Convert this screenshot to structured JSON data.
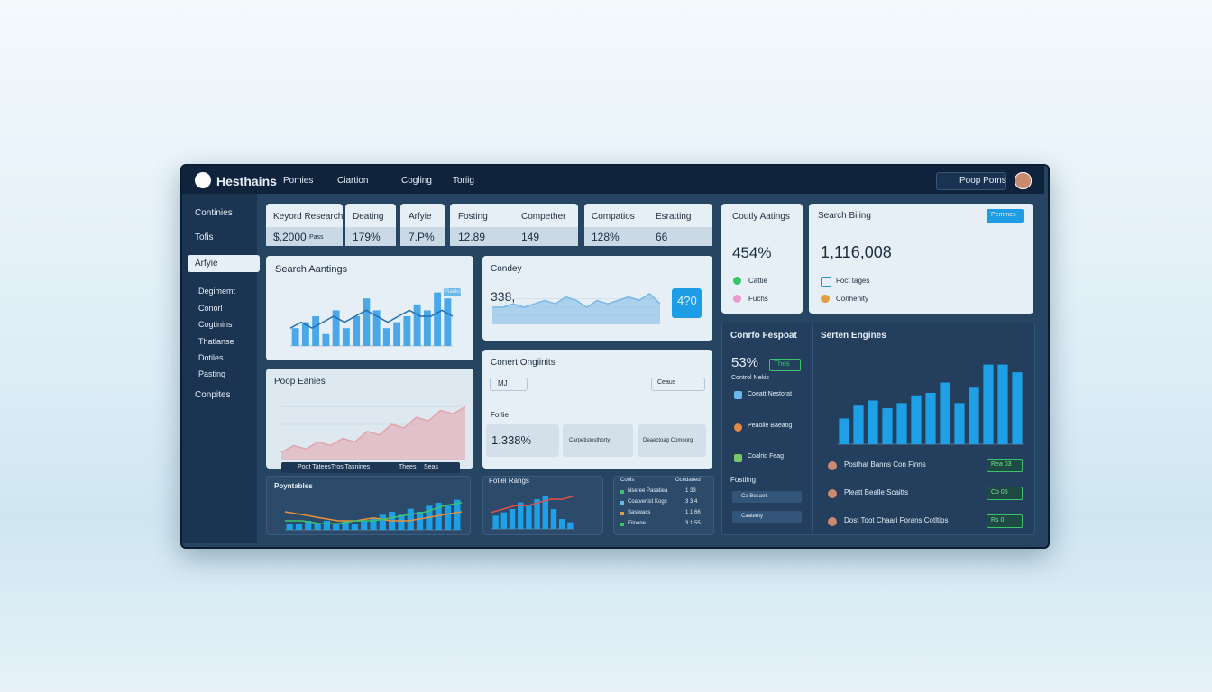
{
  "header": {
    "brand": "Hesthains",
    "nav": [
      "Pomies",
      "Ciartion",
      "Cogling",
      "Toriig"
    ],
    "search": "Poop Poms"
  },
  "sidebar": {
    "items": [
      "Continies",
      "Tofis",
      "Arfyie",
      "Degimemt",
      "Conorl",
      "Cogtinins",
      "Thatlanse",
      "Dotiles",
      "Pasting",
      "Conpites"
    ]
  },
  "kpis": [
    {
      "label": "Keyord Research",
      "value": "$,2000",
      "unit": "Pass"
    },
    {
      "label": "Deating",
      "value": "179%"
    },
    {
      "label": "Arfyie",
      "value": "7.P%"
    },
    {
      "label": "Fosting",
      "value": "12.89",
      "label2": "Compether",
      "value2": "149"
    },
    {
      "label": "Compatios",
      "value": "128%",
      "label2": "Esratting",
      "value2": "66"
    }
  ],
  "rankings": {
    "title": "Search Aantings",
    "badge": "Ranks",
    "ylim": [
      0,
      10
    ],
    "color": "#4aa8e8",
    "values": [
      3,
      4,
      5,
      2,
      6,
      3,
      5,
      8,
      6,
      3,
      4,
      5,
      7,
      6,
      9,
      8
    ],
    "line": {
      "color": "#1f6fb0",
      "values": [
        3,
        4,
        3,
        4,
        5,
        4,
        5,
        6,
        5,
        4,
        5,
        6,
        5,
        5,
        6,
        5
      ]
    }
  },
  "condey": {
    "title": "Condey",
    "value": "338,",
    "badge": "4?0",
    "ylim": [
      0,
      10
    ],
    "color": "#7ab8e6",
    "values": [
      5,
      5,
      6,
      5,
      6,
      7,
      6,
      8,
      7,
      5,
      7,
      6,
      7,
      8,
      7,
      9,
      6
    ]
  },
  "eanies": {
    "title": "Poop Eanies",
    "ylim": [
      0,
      10
    ],
    "color": "#e3a3ad",
    "values": [
      1,
      2,
      1.5,
      2.5,
      2,
      3,
      2.5,
      4,
      3.5,
      5,
      4.5,
      6,
      5.5,
      7,
      6.5,
      7.5
    ],
    "legend": [
      "Poot Tatees",
      "Tros Tasnines",
      "Thees",
      "Seas"
    ]
  },
  "content": {
    "title": "Conert Ongiinits",
    "select": "MJ",
    "select2": "Ceaus",
    "label": "Forlie",
    "stat": "1.338%",
    "boxes": [
      "Carpetistesthorty",
      "Deaectoag Comoorg"
    ]
  },
  "poyntables": {
    "title": "Poyntables",
    "ylim": [
      0,
      12
    ],
    "color": "#1ea0e6",
    "values": [
      2,
      2,
      3,
      2,
      3,
      2,
      3,
      2,
      3,
      4,
      5,
      6,
      5,
      7,
      6,
      8,
      9,
      8,
      10
    ],
    "lines": [
      {
        "color": "#e8913a",
        "values": [
          6,
          5,
          4,
          3,
          3,
          4,
          3,
          3,
          4,
          5,
          6
        ]
      },
      {
        "color": "#3ac46a",
        "values": [
          3,
          3,
          2,
          2,
          3,
          3,
          4,
          5,
          6,
          8,
          9
        ]
      }
    ]
  },
  "fotlel": {
    "title": "Fotlel Rangs",
    "ylim": [
      0,
      12
    ],
    "color": "#1ea0e6",
    "values": [
      4,
      5,
      6,
      8,
      7,
      9,
      10,
      6,
      3,
      2
    ],
    "line": {
      "color": "#e0504a",
      "values": [
        5,
        6,
        7,
        7,
        8,
        9,
        9,
        10
      ]
    }
  },
  "table": {
    "headers": [
      "Cools",
      "Ocedaned"
    ],
    "rows": [
      [
        "Nseree Pasatiea",
        "1 33"
      ],
      [
        "Coatvenist Kogs",
        "3 3 4"
      ],
      [
        "Sasiwacs",
        "1 1 66"
      ],
      [
        "Eiloone",
        "3 1 55"
      ]
    ]
  },
  "coutly": {
    "title": "Coutly Aatings",
    "value": "454%",
    "items": [
      "Cattie",
      "Fuchs"
    ]
  },
  "billing": {
    "title": "Search Biling",
    "button": "Pemmes",
    "value": "1,116,008",
    "items": [
      "Foct tages",
      "Conhenity"
    ]
  },
  "report": {
    "title": "Conrfo Fespoat",
    "value": "53%",
    "badge": "Thes",
    "subtitle": "Control Nekis",
    "items": [
      "Coeatt Nestorat",
      "Peaolie Baeaog",
      "Coalrid Feag"
    ],
    "section": "Fostiing",
    "buttons": [
      "Ca Bosaet",
      "Caatenty"
    ]
  },
  "engines": {
    "title": "Serten Engines",
    "ylim": [
      0,
      34
    ],
    "color": "#1ea0e6",
    "values": [
      10,
      15,
      17,
      14,
      16,
      19,
      20,
      24,
      16,
      22,
      31,
      31,
      28
    ],
    "rows": [
      {
        "text": "Posthat Banns Con Finns",
        "badge": "Rea 03"
      },
      {
        "text": "Pleatt Bealle Scaitts",
        "badge": "Co 05"
      },
      {
        "text": "Dost Toot Chaari Forans Cotltips",
        "badge": "Rs 0"
      }
    ]
  }
}
